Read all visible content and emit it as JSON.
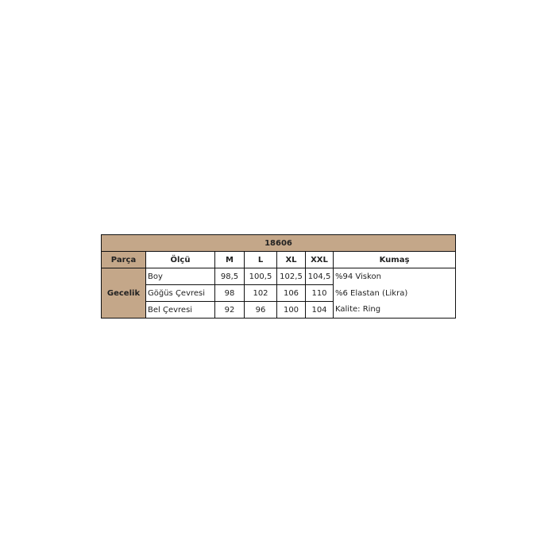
{
  "table": {
    "title": "18606",
    "headers": [
      "Parça",
      "Ölçü",
      "M",
      "L",
      "XL",
      "XXL",
      "Kumaş"
    ],
    "part": "Gecelik",
    "rows": [
      {
        "measure": "Boy",
        "values": [
          "98,5",
          "100,5",
          "102,5",
          "104,5"
        ],
        "fabric": "%94 Viskon"
      },
      {
        "measure": "Göğüs Çevresi",
        "values": [
          "98",
          "102",
          "106",
          "110"
        ],
        "fabric": "%6 Elastan (Likra)"
      },
      {
        "measure": "Bel Çevresi",
        "values": [
          "92",
          "96",
          "100",
          "104"
        ],
        "fabric": "Kalite: Ring"
      }
    ]
  },
  "colors": {
    "header_bg": "#c4a789"
  }
}
